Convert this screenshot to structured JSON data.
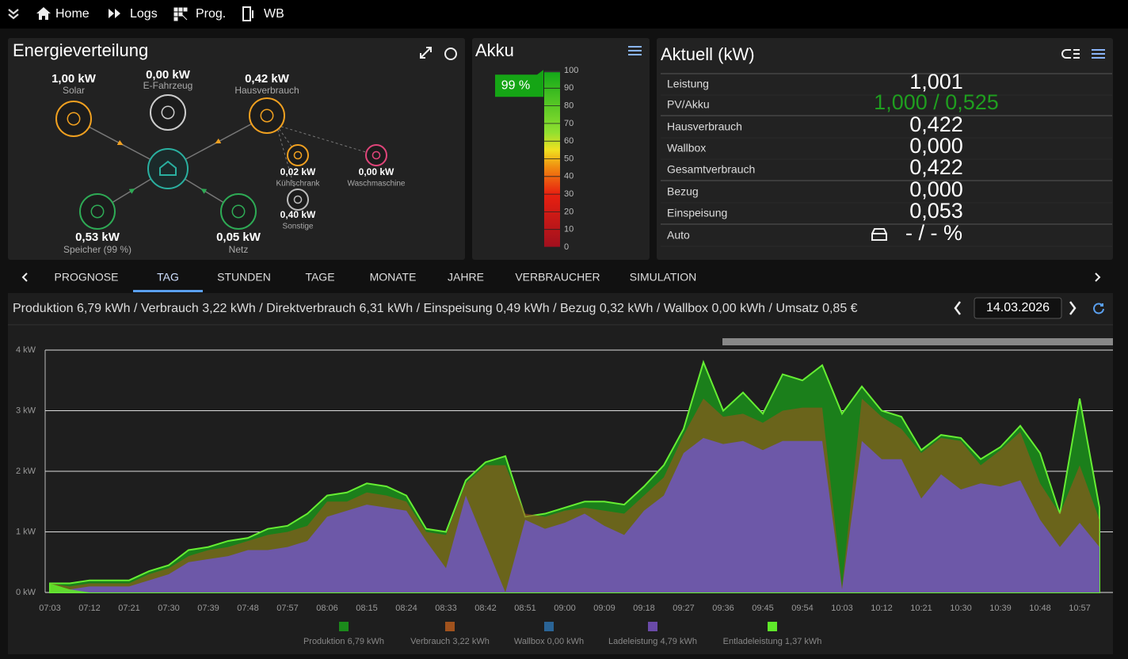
{
  "nav": [
    "Home",
    "Logs",
    "Prog.",
    "WB"
  ],
  "energy": {
    "title": "Energieverteilung",
    "nodes": [
      {
        "value": "1,00 kW",
        "label": "Solar",
        "color": "#f0a020"
      },
      {
        "value": "0,00 kW",
        "label": "E-Fahrzeug",
        "color": "#cccccc"
      },
      {
        "value": "0,42 kW",
        "label": "Hausverbrauch",
        "color": "#f0a020"
      },
      {
        "value": "0,53 kW",
        "label": "Speicher (99 %)",
        "color": "#2eaa55"
      },
      {
        "value": "0,05 kW",
        "label": "Netz",
        "color": "#2eaa55"
      },
      {
        "value": "0,02 kW",
        "label": "Kühlschrank",
        "color": "#f0a020"
      },
      {
        "value": "0,00 kW",
        "label": "Waschmaschine",
        "color": "#e0457a"
      },
      {
        "value": "0,40 kW",
        "label": "Sonstige",
        "color": "#bbbbbb"
      }
    ]
  },
  "akku": {
    "title": "Akku",
    "level": 99,
    "level_label": "99 %",
    "scale": [
      100,
      90,
      80,
      70,
      60,
      50,
      40,
      30,
      20,
      10,
      0
    ]
  },
  "aktuell": {
    "title": "Aktuell (kW)",
    "rows": [
      {
        "label": "Leistung",
        "value": "1,001"
      },
      {
        "label": "PV/Akku",
        "value": "1,000 / 0,525",
        "color": "#1f9e1f"
      },
      {
        "label": "Hausverbrauch",
        "value": "0,422"
      },
      {
        "label": "Wallbox",
        "value": "0,000"
      },
      {
        "label": "Gesamtverbrauch",
        "value": "0,422"
      },
      {
        "label": "Bezug",
        "value": "0,000"
      },
      {
        "label": "Einspeisung",
        "value": "0,053"
      },
      {
        "label": "Auto",
        "value": "- / - %"
      }
    ]
  },
  "tabs": [
    "PROGNOSE",
    "TAG",
    "STUNDEN",
    "TAGE",
    "MONATE",
    "JAHRE",
    "VERBRAUCHER",
    "SIMULATION"
  ],
  "active_tab": 1,
  "summary": "Produktion 6,79 kWh / Verbrauch 3,22 kWh / Direktverbrauch 6,31 kWh / Einspeisung 0,49 kWh / Bezug 0,32 kWh / Wallbox 0,00 kWh / Umsatz 0,85 €",
  "date": "14.03.2026",
  "chart_data": {
    "type": "area",
    "grid": true,
    "categories": [
      "07:03",
      null,
      "07:12",
      null,
      "07:21",
      null,
      "07:30",
      null,
      "07:39",
      null,
      "07:48",
      null,
      "07:57",
      null,
      "08:06",
      null,
      "08:15",
      null,
      "08:24",
      null,
      "08:33",
      null,
      "08:42",
      null,
      "08:51",
      null,
      "09:00",
      null,
      "09:09",
      null,
      "09:18",
      null,
      "09:27",
      null,
      "09:36",
      null,
      "09:45",
      null,
      "09:54",
      null,
      "10:03",
      null,
      "10:12",
      null,
      "10:21",
      null,
      "10:30",
      null,
      "10:39",
      null,
      "10:48",
      null,
      "10:57",
      null
    ],
    "ylim": [
      0,
      4
    ],
    "yticks": [
      {
        "value": 0,
        "label": "0 kW"
      },
      {
        "value": 1,
        "label": "1 kW"
      },
      {
        "value": 2,
        "label": "2 kW"
      },
      {
        "value": 3,
        "label": "3 kW"
      },
      {
        "value": 4,
        "label": "4 kW"
      }
    ],
    "series": [
      {
        "name": "Produktion 6,79 kWh",
        "color": "#1b8a1b",
        "values": [
          0.15,
          0.15,
          0.2,
          0.2,
          0.2,
          0.35,
          0.45,
          0.7,
          0.75,
          0.85,
          0.9,
          1.05,
          1.1,
          1.3,
          1.6,
          1.65,
          1.8,
          1.75,
          1.6,
          1.05,
          1.0,
          1.85,
          2.15,
          2.25,
          1.25,
          1.3,
          1.4,
          1.5,
          1.5,
          1.45,
          1.75,
          2.1,
          2.7,
          3.8,
          3.0,
          3.3,
          2.95,
          3.6,
          3.5,
          3.75,
          2.95,
          3.4,
          3.0,
          2.9,
          2.35,
          2.6,
          2.55,
          2.2,
          2.4,
          2.75,
          2.3,
          1.3,
          3.2,
          1.4
        ]
      },
      {
        "name": "Verbrauch 3,22 kWh",
        "color": "#a0521d",
        "values": [
          0.15,
          0.1,
          0.15,
          0.15,
          0.15,
          0.3,
          0.4,
          0.6,
          0.7,
          0.75,
          0.85,
          0.95,
          1.0,
          1.1,
          1.5,
          1.5,
          1.65,
          1.6,
          1.5,
          1.0,
          0.95,
          1.8,
          2.1,
          2.1,
          1.3,
          1.25,
          1.35,
          1.4,
          1.35,
          1.3,
          1.6,
          1.9,
          2.6,
          3.2,
          2.9,
          2.95,
          2.8,
          3.0,
          3.05,
          3.05,
          0.1,
          3.2,
          2.9,
          2.7,
          2.3,
          2.55,
          2.5,
          2.1,
          2.35,
          2.65,
          1.8,
          1.3,
          2.1,
          1.2
        ]
      },
      {
        "name": "Wallbox 0,00 kWh",
        "color": "#2a6496",
        "values": [
          0,
          0,
          0,
          0,
          0,
          0,
          0,
          0,
          0,
          0,
          0,
          0,
          0,
          0,
          0,
          0,
          0,
          0,
          0,
          0,
          0,
          0,
          0,
          0,
          0,
          0,
          0,
          0,
          0,
          0,
          0,
          0,
          0,
          0,
          0,
          0,
          0,
          0,
          0,
          0,
          0,
          0,
          0,
          0,
          0,
          0,
          0,
          0,
          0,
          0,
          0,
          0,
          0,
          0
        ]
      },
      {
        "name": "Ladeleistung 4,79 kWh",
        "color": "#6a4aa8",
        "values": [
          0,
          0.05,
          0.1,
          0.1,
          0.1,
          0.2,
          0.3,
          0.5,
          0.55,
          0.6,
          0.7,
          0.7,
          0.75,
          0.85,
          1.25,
          1.35,
          1.45,
          1.4,
          1.35,
          0.85,
          0.4,
          1.6,
          0.8,
          0,
          1.2,
          1.05,
          1.15,
          1.3,
          1.1,
          0.95,
          1.35,
          1.6,
          2.3,
          2.55,
          2.45,
          2.5,
          2.35,
          2.5,
          2.5,
          2.5,
          0.05,
          2.5,
          2.2,
          2.2,
          1.55,
          1.95,
          1.7,
          1.8,
          1.75,
          1.85,
          1.2,
          0.75,
          1.15,
          0.75
        ]
      },
      {
        "name": "Entladeleistung 1,37 kWh",
        "color": "#5fe82a",
        "values": [
          0.15,
          0.05,
          0,
          0,
          0,
          0,
          0,
          0,
          0,
          0,
          0,
          0,
          0,
          0,
          0,
          0,
          0,
          0,
          0,
          0,
          0,
          0,
          0,
          0,
          0,
          0,
          0,
          0,
          0,
          0,
          0,
          0,
          0,
          0,
          0,
          0,
          0,
          0,
          0,
          0,
          0,
          0,
          0,
          0,
          0,
          0,
          0,
          0,
          0,
          0,
          0,
          0,
          0,
          0
        ]
      }
    ]
  }
}
